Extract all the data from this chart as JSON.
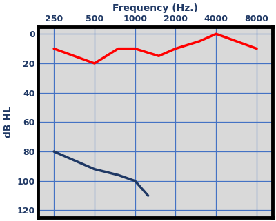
{
  "title": "Frequency (Hz.)",
  "ylabel": "dB HL",
  "freq_ticks": [
    250,
    500,
    1000,
    2000,
    4000,
    8000
  ],
  "freq_tick_labels": [
    "250",
    "500",
    "1000",
    "2000",
    "4000",
    "8000"
  ],
  "ylim": [
    125,
    -5
  ],
  "yticks": [
    0,
    20,
    40,
    60,
    80,
    100,
    120
  ],
  "red_freqs": [
    250,
    500,
    750,
    1000,
    1500,
    2000,
    3000,
    4000,
    8000
  ],
  "red_values": [
    10,
    20,
    10,
    10,
    15,
    10,
    5,
    0,
    10
  ],
  "blue_freqs": [
    250,
    500,
    750,
    1000,
    1250
  ],
  "blue_values": [
    80,
    92,
    96,
    100,
    110
  ],
  "red_color": "#FF0000",
  "blue_color": "#1F3864",
  "background_color": "#D9D9D9",
  "fig_background_color": "#FFFFFF",
  "border_color": "#000000",
  "grid_color": "#4472C4",
  "linewidth": 2.5,
  "spine_linewidth": 3.5,
  "title_fontsize": 10,
  "label_fontsize": 10,
  "tick_fontsize": 9
}
